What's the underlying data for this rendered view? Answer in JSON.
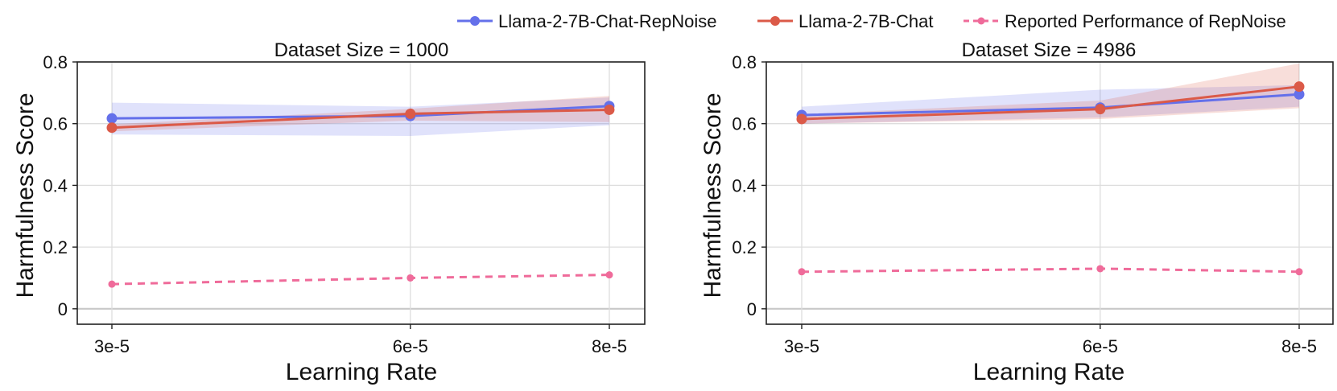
{
  "legend": {
    "items": [
      {
        "label": "Llama-2-7B-Chat-RepNoise",
        "color": "#6470ea",
        "style": "solid"
      },
      {
        "label": "Llama-2-7B-Chat",
        "color": "#db5a48",
        "style": "solid"
      },
      {
        "label": "Reported Performance of RepNoise",
        "color": "#ef6b9a",
        "style": "dashed"
      }
    ]
  },
  "chart_data": [
    {
      "type": "line",
      "title": "Dataset Size = 1000",
      "xlabel": "Learning Rate",
      "ylabel": "Harmfulness Score",
      "categories": [
        "3e-5",
        "6e-5",
        "8e-5"
      ],
      "x": [
        3,
        6,
        8
      ],
      "ylim": [
        -0.05,
        0.8
      ],
      "yticks": [
        0,
        0.2,
        0.4,
        0.6,
        0.8
      ],
      "ytick_labels": [
        "0",
        "0.2",
        "0.4",
        "0.6",
        "0.8"
      ],
      "grid": true,
      "series": [
        {
          "name": "Llama-2-7B-Chat-RepNoise",
          "color": "#6470ea",
          "values": [
            0.617,
            0.625,
            0.657
          ],
          "band_low": [
            0.565,
            0.56,
            0.595
          ],
          "band_high": [
            0.668,
            0.655,
            0.685
          ]
        },
        {
          "name": "Llama-2-7B-Chat",
          "color": "#db5a48",
          "values": [
            0.587,
            0.632,
            0.645
          ],
          "band_low": [
            0.575,
            0.61,
            0.605
          ],
          "band_high": [
            0.598,
            0.648,
            0.69
          ]
        },
        {
          "name": "Reported Performance of RepNoise",
          "color": "#ef6b9a",
          "values": [
            0.08,
            0.1,
            0.11
          ],
          "dashed": true
        }
      ]
    },
    {
      "type": "line",
      "title": "Dataset Size = 4986",
      "xlabel": "Learning Rate",
      "ylabel": "Harmfulness Score",
      "categories": [
        "3e-5",
        "6e-5",
        "8e-5"
      ],
      "x": [
        3,
        6,
        8
      ],
      "ylim": [
        -0.05,
        0.8
      ],
      "yticks": [
        0,
        0.2,
        0.4,
        0.6,
        0.8
      ],
      "ytick_labels": [
        "0",
        "0.2",
        "0.4",
        "0.6",
        "0.8"
      ],
      "grid": true,
      "series": [
        {
          "name": "Llama-2-7B-Chat-RepNoise",
          "color": "#6470ea",
          "values": [
            0.628,
            0.652,
            0.695
          ],
          "band_low": [
            0.6,
            0.62,
            0.655
          ],
          "band_high": [
            0.655,
            0.71,
            0.725
          ]
        },
        {
          "name": "Llama-2-7B-Chat",
          "color": "#db5a48",
          "values": [
            0.615,
            0.647,
            0.72
          ],
          "band_low": [
            0.6,
            0.615,
            0.65
          ],
          "band_high": [
            0.63,
            0.675,
            0.795
          ]
        },
        {
          "name": "Reported Performance of RepNoise",
          "color": "#ef6b9a",
          "values": [
            0.12,
            0.13,
            0.12
          ],
          "dashed": true
        }
      ]
    }
  ]
}
